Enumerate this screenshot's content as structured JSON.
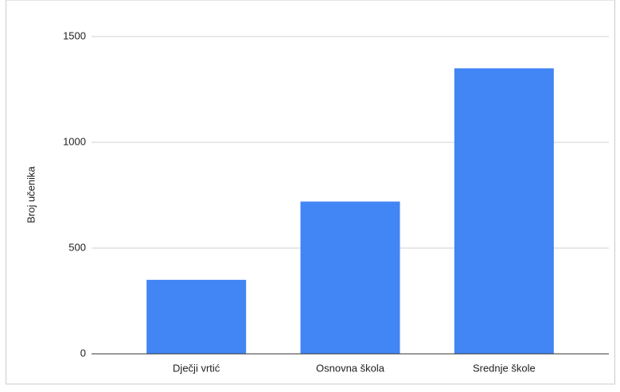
{
  "chart_data": {
    "type": "bar",
    "y_label": "Broj učenika",
    "categories": [
      "Dječji vrtić",
      "Osnovna škola",
      "Srednje škole"
    ],
    "values": [
      350,
      720,
      1350
    ],
    "color": "#4285f4",
    "ylim": [
      0,
      1500
    ],
    "yticks": [
      0,
      500,
      1000,
      1500
    ],
    "grid": true
  }
}
